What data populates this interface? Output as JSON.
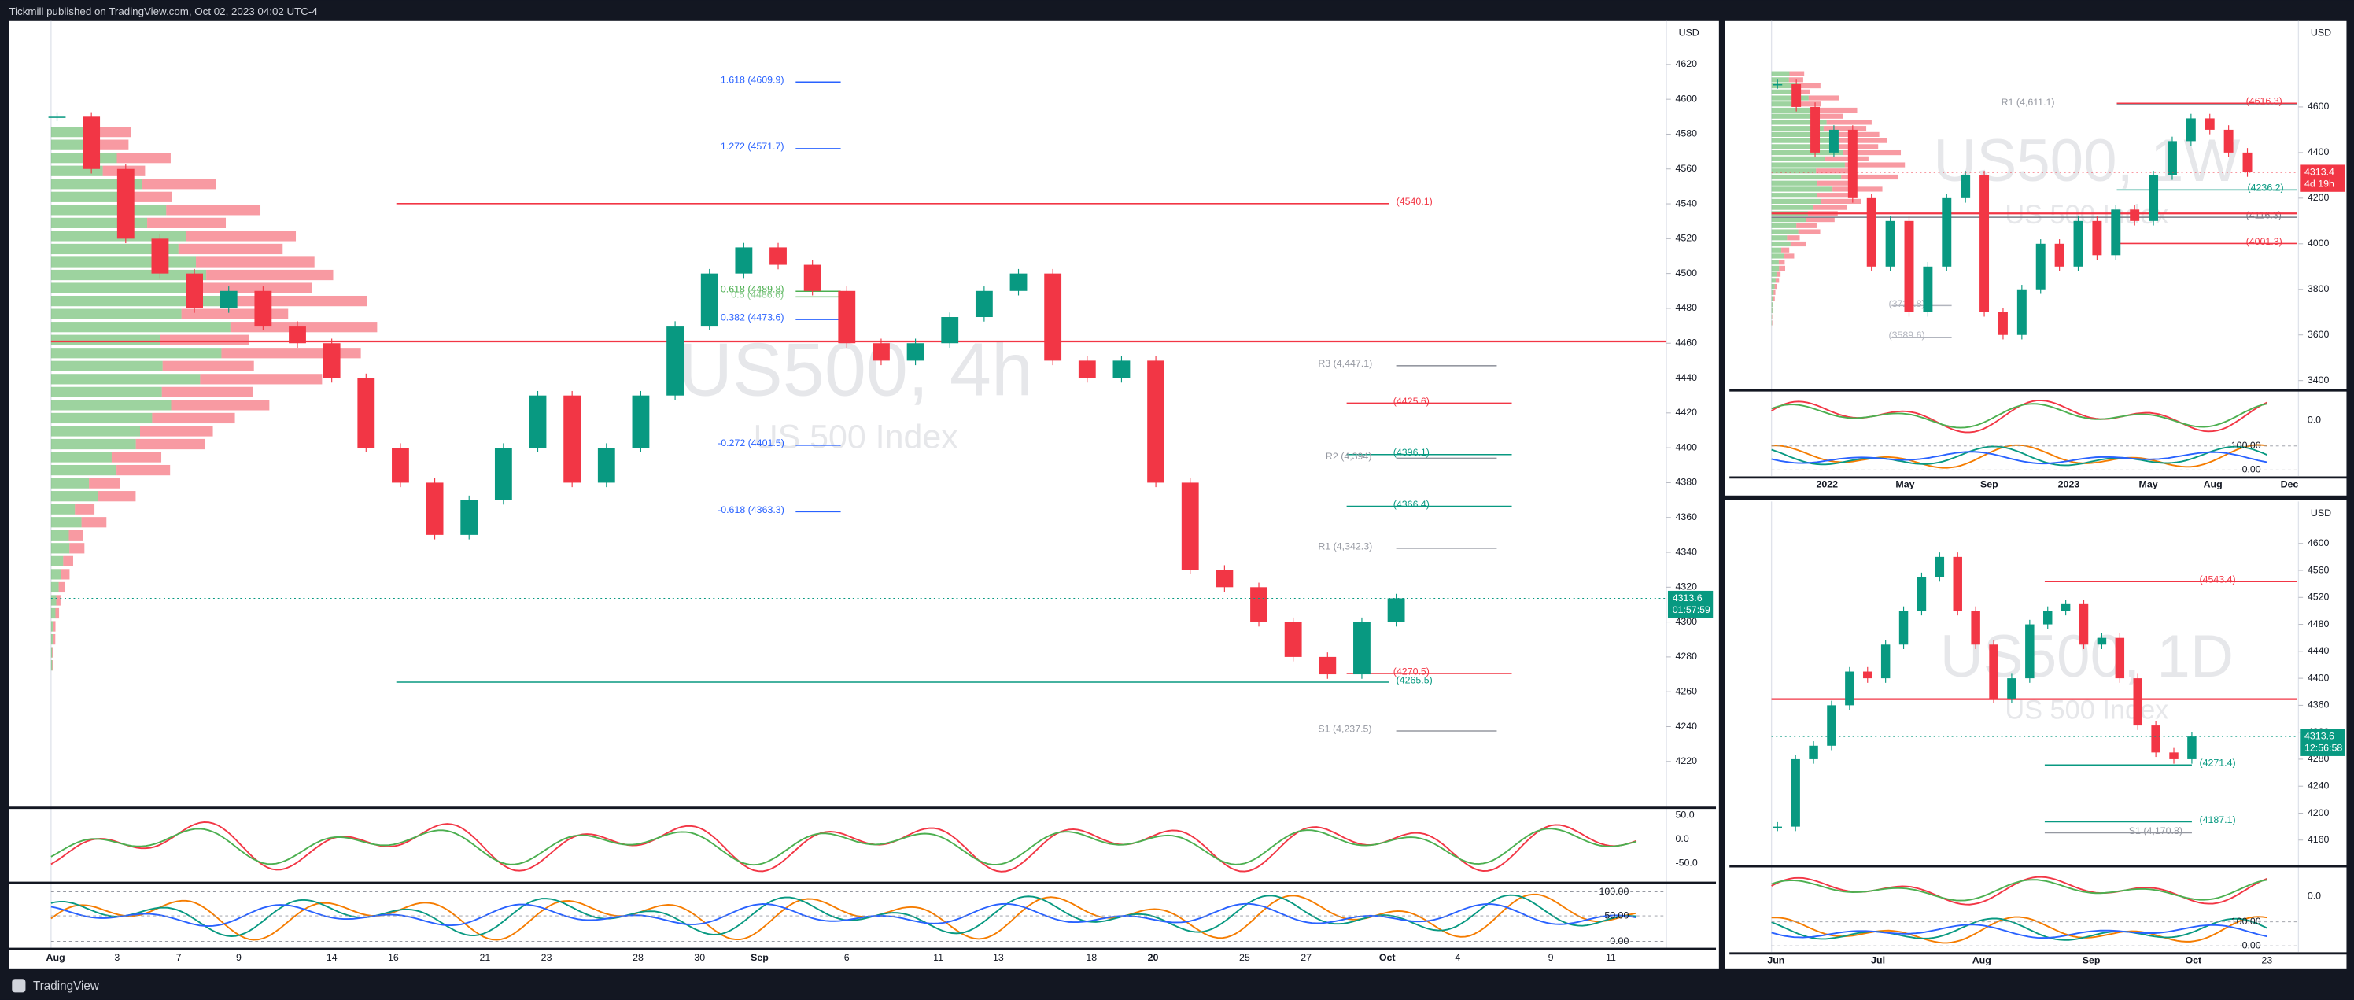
{
  "header": {
    "publisher": "Tickmill published on TradingView.com, Oct 02, 2023 04:02 UTC-4"
  },
  "footer": {
    "brand": "TradingView"
  },
  "panels": [
    {
      "symbol": "US500, 4h",
      "description": "US 500 Index",
      "currency": "USD",
      "ylim": [
        4196,
        4644
      ],
      "yticks": [
        4220,
        4240,
        4260,
        4280,
        4300,
        4320,
        4340,
        4360,
        4380,
        4400,
        4420,
        4440,
        4460,
        4480,
        4500,
        4520,
        4540,
        4560,
        4580,
        4600,
        4620
      ],
      "dates": [
        "Aug",
        "3",
        "7",
        "9",
        "14",
        "16",
        "21",
        "23",
        "28",
        "30",
        "Sep",
        "6",
        "11",
        "13",
        "18",
        "20",
        "25",
        "27",
        "Oct",
        "4",
        "9",
        "11"
      ],
      "closes": [
        4590,
        4560,
        4520,
        4500,
        4480,
        4490,
        4470,
        4460,
        4440,
        4400,
        4380,
        4350,
        4370,
        4400,
        4430,
        4380,
        4400,
        4430,
        4470,
        4500,
        4515,
        4505,
        4490,
        4460,
        4450,
        4460,
        4475,
        4490,
        4500,
        4450,
        4440,
        4450,
        4380,
        4330,
        4320,
        4300,
        4280,
        4270,
        4300,
        4313.6
      ],
      "levels": [
        {
          "label": "1.618 (4609.9)",
          "value": 4609.9,
          "color": "#2962ff"
        },
        {
          "label": "1.272 (4571.7)",
          "value": 4571.7,
          "color": "#2962ff"
        },
        {
          "label": "(4540.1)",
          "value": 4540.1,
          "color": "#f23645"
        },
        {
          "label": "0.618 (4489.8)",
          "value": 4489.8,
          "color": "#4caf50"
        },
        {
          "label": "0.5 (4486.6)",
          "value": 4486.6,
          "color": "#81c784"
        },
        {
          "label": "0.382 (4473.6)",
          "value": 4473.6,
          "color": "#2962ff"
        },
        {
          "label": "R3 (4,447.1)",
          "value": 4447.1,
          "color": "#9598a1"
        },
        {
          "label": "(4425.6)",
          "value": 4425.6,
          "color": "#f23645"
        },
        {
          "label": "-0.272 (4401.5)",
          "value": 4401.5,
          "color": "#2962ff"
        },
        {
          "label": "(4396.1)",
          "value": 4396.1,
          "color": "#089981"
        },
        {
          "label": "R2 (4,394)",
          "value": 4394,
          "color": "#9598a1"
        },
        {
          "label": "(4366.4)",
          "value": 4366.4,
          "color": "#089981"
        },
        {
          "label": "-0.618 (4363.3)",
          "value": 4363.3,
          "color": "#2962ff"
        },
        {
          "label": "R1 (4,342.3)",
          "value": 4342.3,
          "color": "#9598a1"
        },
        {
          "label": "(4270.5)",
          "value": 4270.5,
          "color": "#f23645"
        },
        {
          "label": "(4265.5)",
          "value": 4265.5,
          "color": "#089981"
        },
        {
          "label": "S1 (4,237.5)",
          "value": 4237.5,
          "color": "#9598a1"
        },
        {
          "value": 4461,
          "color": "#f23645"
        }
      ],
      "price_tag": {
        "value": 4313.6,
        "countdown": "01:57:59",
        "color": "#089981"
      },
      "indicator_ticks": [
        "50.0",
        "0.0",
        "-50.0"
      ],
      "oscillator_ticks": [
        "100.00",
        "50.00",
        "0.00"
      ]
    },
    {
      "symbol": "US500, 1W",
      "description": "US 500 Index",
      "currency": "USD",
      "ylim": [
        3370,
        4970
      ],
      "yticks": [
        3400,
        3600,
        3800,
        4000,
        4200,
        4400,
        4600
      ],
      "dates": [
        "2022",
        "May",
        "Sep",
        "2023",
        "May",
        "Aug",
        "Dec"
      ],
      "closes": [
        4700,
        4600,
        4400,
        4500,
        4200,
        3900,
        4100,
        3700,
        3900,
        4200,
        4300,
        3700,
        3600,
        3800,
        4000,
        3900,
        4100,
        3950,
        4150,
        4100,
        4300,
        4450,
        4550,
        4500,
        4400,
        4313.4
      ],
      "levels": [
        {
          "label": "R1 (4,611.1)",
          "value": 4611.1,
          "color": "#9598a1"
        },
        {
          "label": "(4616.3)",
          "value": 4616.3,
          "color": "#f23645"
        },
        {
          "label": "(4236.2)",
          "value": 4236.2,
          "color": "#089981"
        },
        {
          "label": "(4116.3)",
          "value": 4116.3,
          "color": "#787b86"
        },
        {
          "label": "(4001.3)",
          "value": 4001.3,
          "color": "#f23645"
        },
        {
          "label": "(3728.8)",
          "value": 3728.8,
          "color": "#b2b5be"
        },
        {
          "label": "(3589.6)",
          "value": 3589.6,
          "color": "#b2b5be"
        },
        {
          "value": 4133,
          "color": "#f23645"
        }
      ],
      "price_tag": {
        "value": 4313.4,
        "countdown": "4d 19h",
        "color": "#f23645"
      },
      "indicator_ticks": [
        "0.0"
      ],
      "oscillator_ticks": [
        "100.00",
        "0.00"
      ]
    },
    {
      "symbol": "US500, 1D",
      "description": "US 500 Index",
      "currency": "USD",
      "ylim": [
        4130,
        4660
      ],
      "yticks": [
        4160,
        4200,
        4240,
        4280,
        4320,
        4360,
        4400,
        4440,
        4480,
        4520,
        4560,
        4600
      ],
      "dates": [
        "Jun",
        "Jul",
        "Aug",
        "Sep",
        "Oct",
        "23"
      ],
      "closes": [
        4180,
        4280,
        4300,
        4360,
        4410,
        4400,
        4450,
        4500,
        4550,
        4580,
        4500,
        4450,
        4370,
        4400,
        4480,
        4500,
        4510,
        4450,
        4460,
        4400,
        4330,
        4290,
        4280,
        4313.6
      ],
      "levels": [
        {
          "label": "(4543.4)",
          "value": 4543.4,
          "color": "#f23645"
        },
        {
          "label": "(4271.4)",
          "value": 4271.4,
          "color": "#089981"
        },
        {
          "label": "(4187.1)",
          "value": 4187.1,
          "color": "#089981"
        },
        {
          "label": "S1 (4,170.8)",
          "value": 4170.8,
          "color": "#9598a1"
        },
        {
          "value": 4369,
          "color": "#f23645"
        }
      ],
      "price_tag": {
        "value": 4313.6,
        "countdown": "12:56:58",
        "color": "#089981"
      },
      "indicator_ticks": [
        "0.0"
      ],
      "oscillator_ticks": [
        "100.00",
        "0.00"
      ]
    }
  ]
}
